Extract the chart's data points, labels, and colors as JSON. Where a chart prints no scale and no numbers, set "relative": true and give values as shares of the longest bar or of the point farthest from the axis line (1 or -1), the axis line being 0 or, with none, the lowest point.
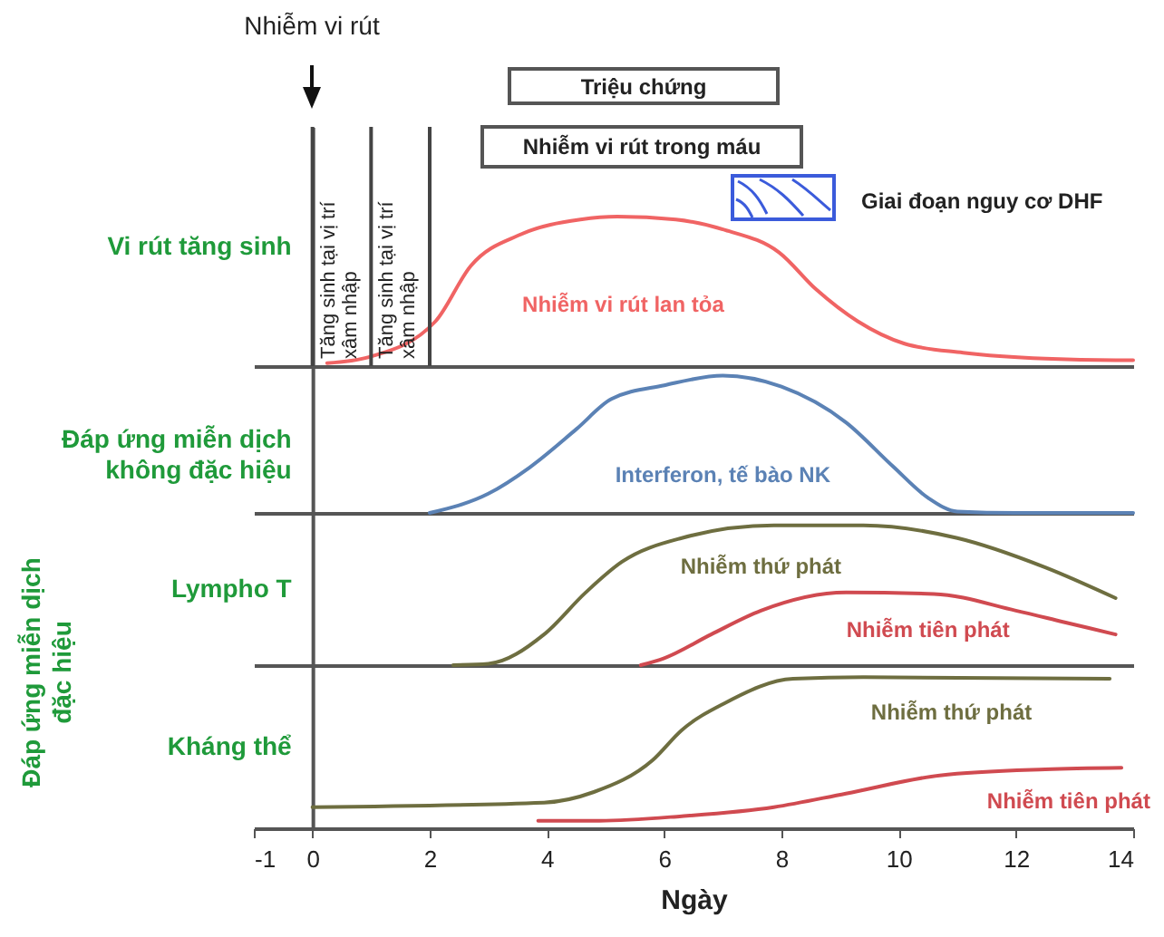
{
  "chart_data": [
    {
      "type": "line",
      "relative": true,
      "ylabel": "Vi rút tăng sinh",
      "xlim": [
        -1,
        14
      ],
      "xticks": [
        -1,
        0,
        2,
        4,
        6,
        8,
        10,
        12,
        14
      ],
      "tick_labels": false,
      "series": [
        {
          "name": "Nhiễm vi rút lan tỏa",
          "color": "#f06464",
          "x": [
            0.25,
            0.96,
            2.1,
            2.7,
            3.55,
            4.57,
            5.2,
            6.2,
            7.04,
            7.96,
            8.6,
            9.3,
            10.1,
            11.1,
            12.5,
            13.7,
            14
          ],
          "values": [
            0.02,
            0.06,
            0.3,
            0.67,
            0.88,
            0.98,
            1,
            0.98,
            0.91,
            0.76,
            0.51,
            0.3,
            0.15,
            0.09,
            0.05,
            0.04,
            0.04
          ]
        }
      ],
      "ref_lines": [
        {
          "axis": "x",
          "value": 0,
          "label": "Tăng sinh tại vị trí\nxâm nhập"
        },
        {
          "axis": "x",
          "value": 1,
          "label": "Tăng sinh tại vị trí\nxâm nhập"
        },
        {
          "axis": "x",
          "value": 2,
          "label": null
        }
      ],
      "annotations": [
        "Nhiễm vi rút",
        "Triệu chứng",
        "Nhiễm vi rút trong máu",
        "Giai đoạn nguy cơ DHF"
      ]
    },
    {
      "type": "line",
      "relative": true,
      "ylabel": "Đáp ứng miễn dịch\nkhông đặc hiệu",
      "xlim": [
        -1,
        14
      ],
      "xticks": [
        -1,
        0,
        2,
        4,
        6,
        8,
        10,
        12,
        14
      ],
      "tick_labels": false,
      "series": [
        {
          "name": "Interferon, tế bào NK",
          "color": "#5b82b5",
          "x": [
            2,
            3,
            3.7,
            4.5,
            5.1,
            6,
            7,
            8,
            9.1,
            9.9,
            10.5,
            11,
            12,
            14
          ],
          "values": [
            0,
            0.14,
            0.33,
            0.61,
            0.83,
            0.93,
            1,
            0.92,
            0.66,
            0.34,
            0.11,
            0.01,
            0,
            0
          ]
        }
      ]
    },
    {
      "type": "line",
      "relative": true,
      "ylabel": "Lympho T",
      "xlim": [
        -1,
        14
      ],
      "xticks": [
        -1,
        0,
        2,
        4,
        6,
        8,
        10,
        12,
        14
      ],
      "tick_labels": false,
      "series": [
        {
          "name": "Nhiễm thứ phát",
          "color": "#6e6e40",
          "x": [
            2.4,
            3,
            3.95,
            4.66,
            5.28,
            6.3,
            7.87,
            9.4,
            11,
            12.5,
            13.7
          ],
          "values": [
            0,
            0.01,
            0.22,
            0.52,
            0.74,
            0.91,
            1,
            1,
            0.91,
            0.7,
            0.48
          ]
        },
        {
          "name": "Nhiễm tiên phát",
          "color": "#d04a50",
          "x": [
            5.6,
            6,
            6.8,
            7.65,
            9.1,
            10.6,
            12,
            12.8,
            13.7
          ],
          "values": [
            0,
            0.05,
            0.22,
            0.39,
            0.52,
            0.51,
            0.39,
            0.31,
            0.22
          ]
        }
      ],
      "annotations": [
        "Đáp ứng miễn dịch đặc hiệu"
      ]
    },
    {
      "type": "line",
      "relative": true,
      "ylabel": "Kháng thể",
      "xlabel": "Ngày",
      "xlim": [
        -1,
        14
      ],
      "xticks": [
        -1,
        0,
        2,
        4,
        6,
        8,
        10,
        12,
        14
      ],
      "tick_labels": "x",
      "series": [
        {
          "name": "Nhiễm thứ phát",
          "color": "#6e6e40",
          "x": [
            0,
            3.95,
            4.8,
            5.8,
            6.3,
            7.04,
            8.2,
            9.4,
            13.6
          ],
          "values": [
            0.14,
            0.17,
            0.24,
            0.45,
            0.65,
            0.83,
            0.99,
            1,
            0.99
          ]
        },
        {
          "name": "Nhiễm tiên phát",
          "color": "#d04a50",
          "x": [
            3.85,
            4.9,
            6.3,
            7.87,
            9.1,
            10.7,
            12.5,
            13.8
          ],
          "values": [
            0.05,
            0.05,
            0.08,
            0.14,
            0.23,
            0.35,
            0.39,
            0.4
          ]
        }
      ]
    }
  ]
}
